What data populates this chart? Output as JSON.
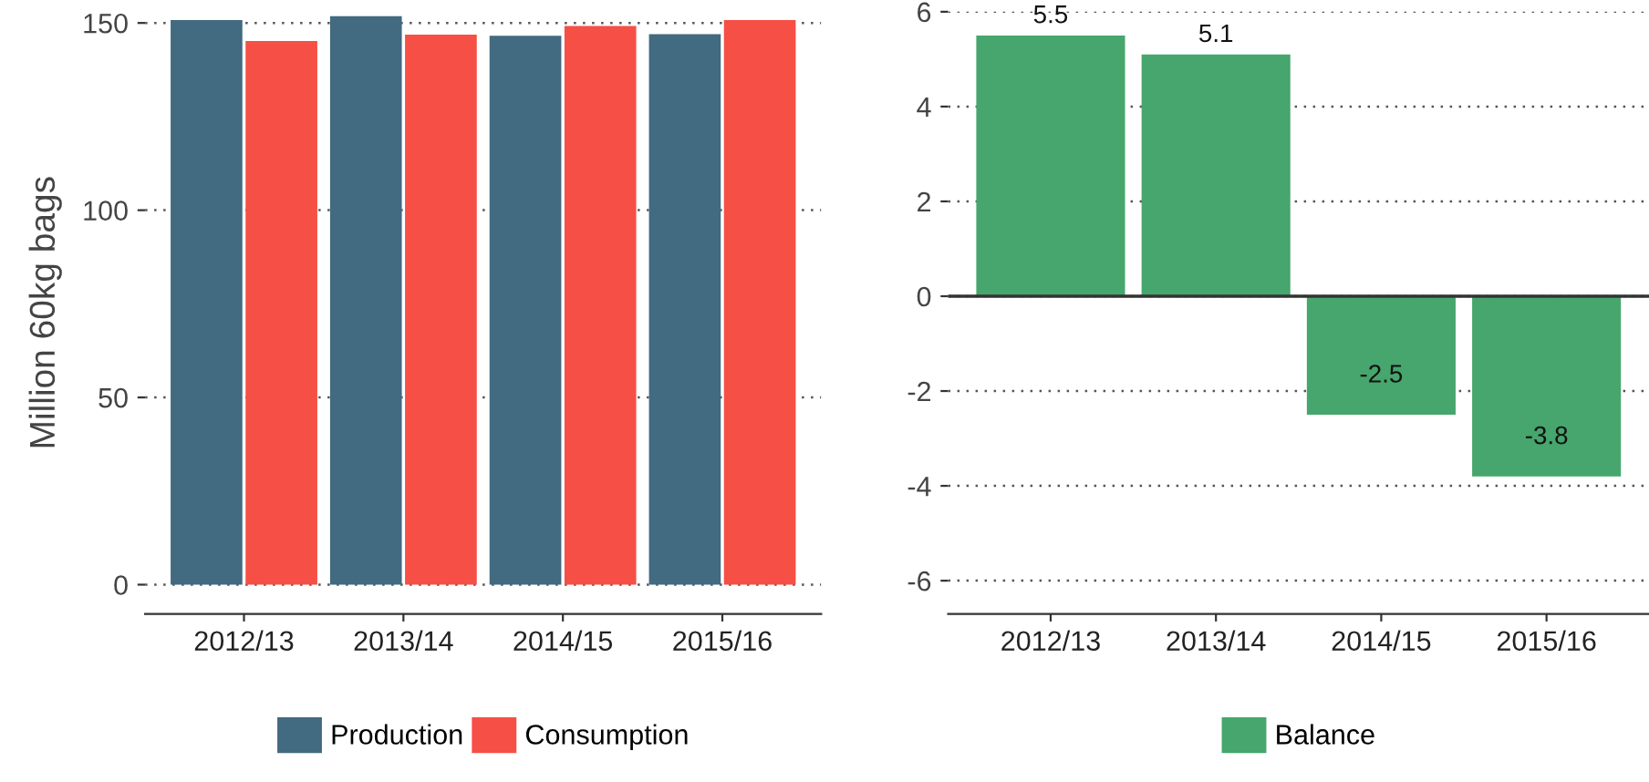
{
  "chart_data": [
    {
      "type": "bar",
      "ylabel": "Million 60kg bags",
      "categories": [
        "2012/13",
        "2013/14",
        "2014/15",
        "2015/16"
      ],
      "series": [
        {
          "name": "Production",
          "color": "#426a80",
          "values": [
            150.8,
            151.8,
            146.6,
            147
          ]
        },
        {
          "name": "Consumption",
          "color": "#f64f45",
          "values": [
            145.2,
            146.9,
            149.2,
            150.8
          ]
        }
      ],
      "ylim": [
        -7.8,
        153
      ],
      "yticks": [
        0,
        50,
        100,
        150
      ],
      "grid": "y",
      "legend": "bottom"
    },
    {
      "type": "bar",
      "categories": [
        "2012/13",
        "2013/14",
        "2014/15",
        "2015/16"
      ],
      "series": [
        {
          "name": "Balance",
          "color": "#46a66d",
          "values": [
            5.5,
            5.1,
            -2.5,
            -3.8
          ]
        }
      ],
      "ylim": [
        -6.7,
        6
      ],
      "yticks": [
        -6,
        -4,
        -2,
        0,
        2,
        4,
        6
      ],
      "grid": "y",
      "legend": "bottom",
      "data_labels": true,
      "ref_lines": [
        {
          "axis": "y",
          "value": 0,
          "color": "#333333"
        }
      ]
    }
  ]
}
